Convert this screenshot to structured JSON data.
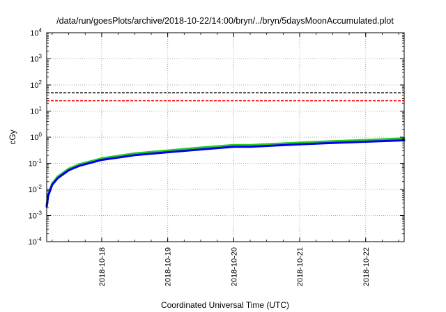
{
  "chart_data": {
    "type": "line",
    "title": "/data/run/goesPlots/archive/2018-10-22/14:00/bryn/../bryn/5daysMoonAccumulated.plot",
    "xlabel": "Coordinated Universal Time (UTC)",
    "ylabel": "cGy",
    "y_scale": "log",
    "ylim": [
      0.0001,
      10000
    ],
    "xlim": [
      "2018-10-17 04:00",
      "2018-10-22 14:00"
    ],
    "y_ticks": [
      {
        "base": "10",
        "exp": "-4",
        "value": 0.0001
      },
      {
        "base": "10",
        "exp": "-3",
        "value": 0.001
      },
      {
        "base": "10",
        "exp": "-2",
        "value": 0.01
      },
      {
        "base": "10",
        "exp": "-1",
        "value": 0.1
      },
      {
        "base": "10",
        "exp": "0",
        "value": 1
      },
      {
        "base": "10",
        "exp": "1",
        "value": 10
      },
      {
        "base": "10",
        "exp": "2",
        "value": 100
      },
      {
        "base": "10",
        "exp": "3",
        "value": 1000
      },
      {
        "base": "10",
        "exp": "4",
        "value": 10000
      }
    ],
    "x_ticks": [
      {
        "label": "2018-10-18",
        "value": "2018-10-18 00:00"
      },
      {
        "label": "2018-10-19",
        "value": "2018-10-19 00:00"
      },
      {
        "label": "2018-10-20",
        "value": "2018-10-20 00:00"
      },
      {
        "label": "2018-10-21",
        "value": "2018-10-21 00:00"
      },
      {
        "label": "2018-10-22",
        "value": "2018-10-22 00:00"
      }
    ],
    "grid": true,
    "reference_lines": [
      {
        "y": 50,
        "color": "#000000",
        "style": "dashed"
      },
      {
        "y": 25,
        "color": "#ff0000",
        "style": "dashed"
      }
    ],
    "series": [
      {
        "color": "#22cc22",
        "x": [
          "2018-10-17 04:00",
          "2018-10-17 04:30",
          "2018-10-17 06:00",
          "2018-10-17 08:00",
          "2018-10-17 12:00",
          "2018-10-17 16:00",
          "2018-10-18 00:00",
          "2018-10-18 12:00",
          "2018-10-19 00:00",
          "2018-10-19 12:00",
          "2018-10-20 00:00",
          "2018-10-20 06:00",
          "2018-10-21 00:00",
          "2018-10-21 12:00",
          "2018-10-22 00:00",
          "2018-10-22 14:00"
        ],
        "y": [
          0.0025,
          0.006,
          0.017,
          0.031,
          0.062,
          0.093,
          0.155,
          0.24,
          0.31,
          0.4,
          0.5,
          0.5,
          0.62,
          0.7,
          0.78,
          0.9
        ]
      },
      {
        "color": "#0000ee",
        "x": [
          "2018-10-17 04:00",
          "2018-10-17 04:30",
          "2018-10-17 06:00",
          "2018-10-17 08:00",
          "2018-10-17 12:00",
          "2018-10-17 16:00",
          "2018-10-18 00:00",
          "2018-10-18 12:00",
          "2018-10-19 00:00",
          "2018-10-19 12:00",
          "2018-10-20 00:00",
          "2018-10-20 06:00",
          "2018-10-21 00:00",
          "2018-10-21 12:00",
          "2018-10-22 00:00",
          "2018-10-22 14:00"
        ],
        "y": [
          0.0022,
          0.0055,
          0.015,
          0.027,
          0.054,
          0.081,
          0.135,
          0.205,
          0.265,
          0.34,
          0.43,
          0.43,
          0.53,
          0.6,
          0.67,
          0.76
        ]
      }
    ]
  }
}
